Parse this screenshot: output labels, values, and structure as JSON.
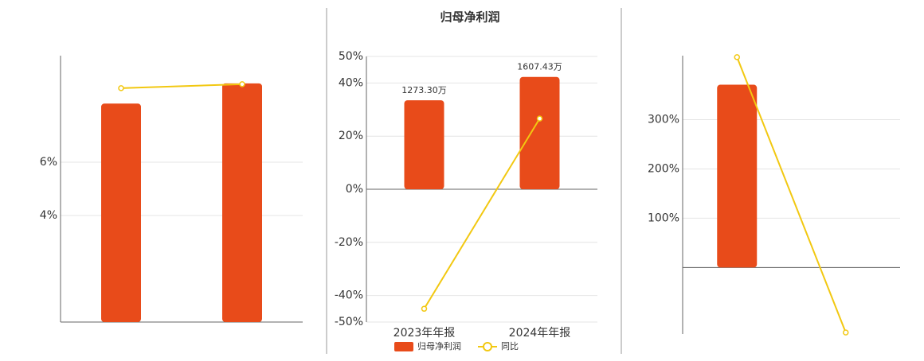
{
  "chart_data": [
    {
      "type": "bar_line",
      "categories": [
        null,
        null
      ],
      "series": [
        {
          "type": "bar",
          "color": "#e84b1a",
          "values": [
            8.2,
            8.96
          ]
        },
        {
          "type": "line",
          "color": "#f2c811",
          "values": [
            8.78,
            8.93
          ]
        }
      ],
      "ylim": [
        0,
        10
      ],
      "yticks": [
        {
          "value": 4,
          "label": "4%"
        },
        {
          "value": 6,
          "label": "6%"
        }
      ],
      "grid": true
    },
    {
      "type": "bar_line",
      "title": "归母净利润",
      "categories": [
        "2023年年报",
        "2024年年报"
      ],
      "series": [
        {
          "type": "bar",
          "name": "归母净利润",
          "color": "#e84b1a",
          "axis": "y2",
          "values": [
            1273.3,
            1607.43
          ],
          "value_labels": [
            "1273.30万",
            "1607.43万"
          ]
        },
        {
          "type": "line",
          "name": "同比",
          "color": "#f2c811",
          "values": [
            -45,
            26.6
          ]
        }
      ],
      "ylim": [
        -50,
        50
      ],
      "yticks": [
        {
          "value": 50,
          "label": "50%"
        },
        {
          "value": 40,
          "label": "40%"
        },
        {
          "value": 20,
          "label": "20%"
        },
        {
          "value": 0,
          "label": "0%"
        },
        {
          "value": -20,
          "label": "-20%"
        },
        {
          "value": -40,
          "label": "-40%"
        },
        {
          "value": -50,
          "label": "-50%"
        }
      ],
      "y2lim": [
        -1900,
        1900
      ],
      "grid": true,
      "legend": "bottom"
    },
    {
      "type": "bar_line",
      "categories": [
        null,
        null
      ],
      "series": [
        {
          "type": "bar",
          "color": "#e84b1a",
          "values": [
            371,
            0
          ]
        },
        {
          "type": "line",
          "color": "#f2c811",
          "values": [
            427,
            -132
          ]
        }
      ],
      "ylim": [
        -135,
        430
      ],
      "yticks": [
        {
          "value": 100,
          "label": "100%"
        },
        {
          "value": 200,
          "label": "200%"
        },
        {
          "value": 300,
          "label": "300%"
        }
      ],
      "grid": true
    }
  ]
}
